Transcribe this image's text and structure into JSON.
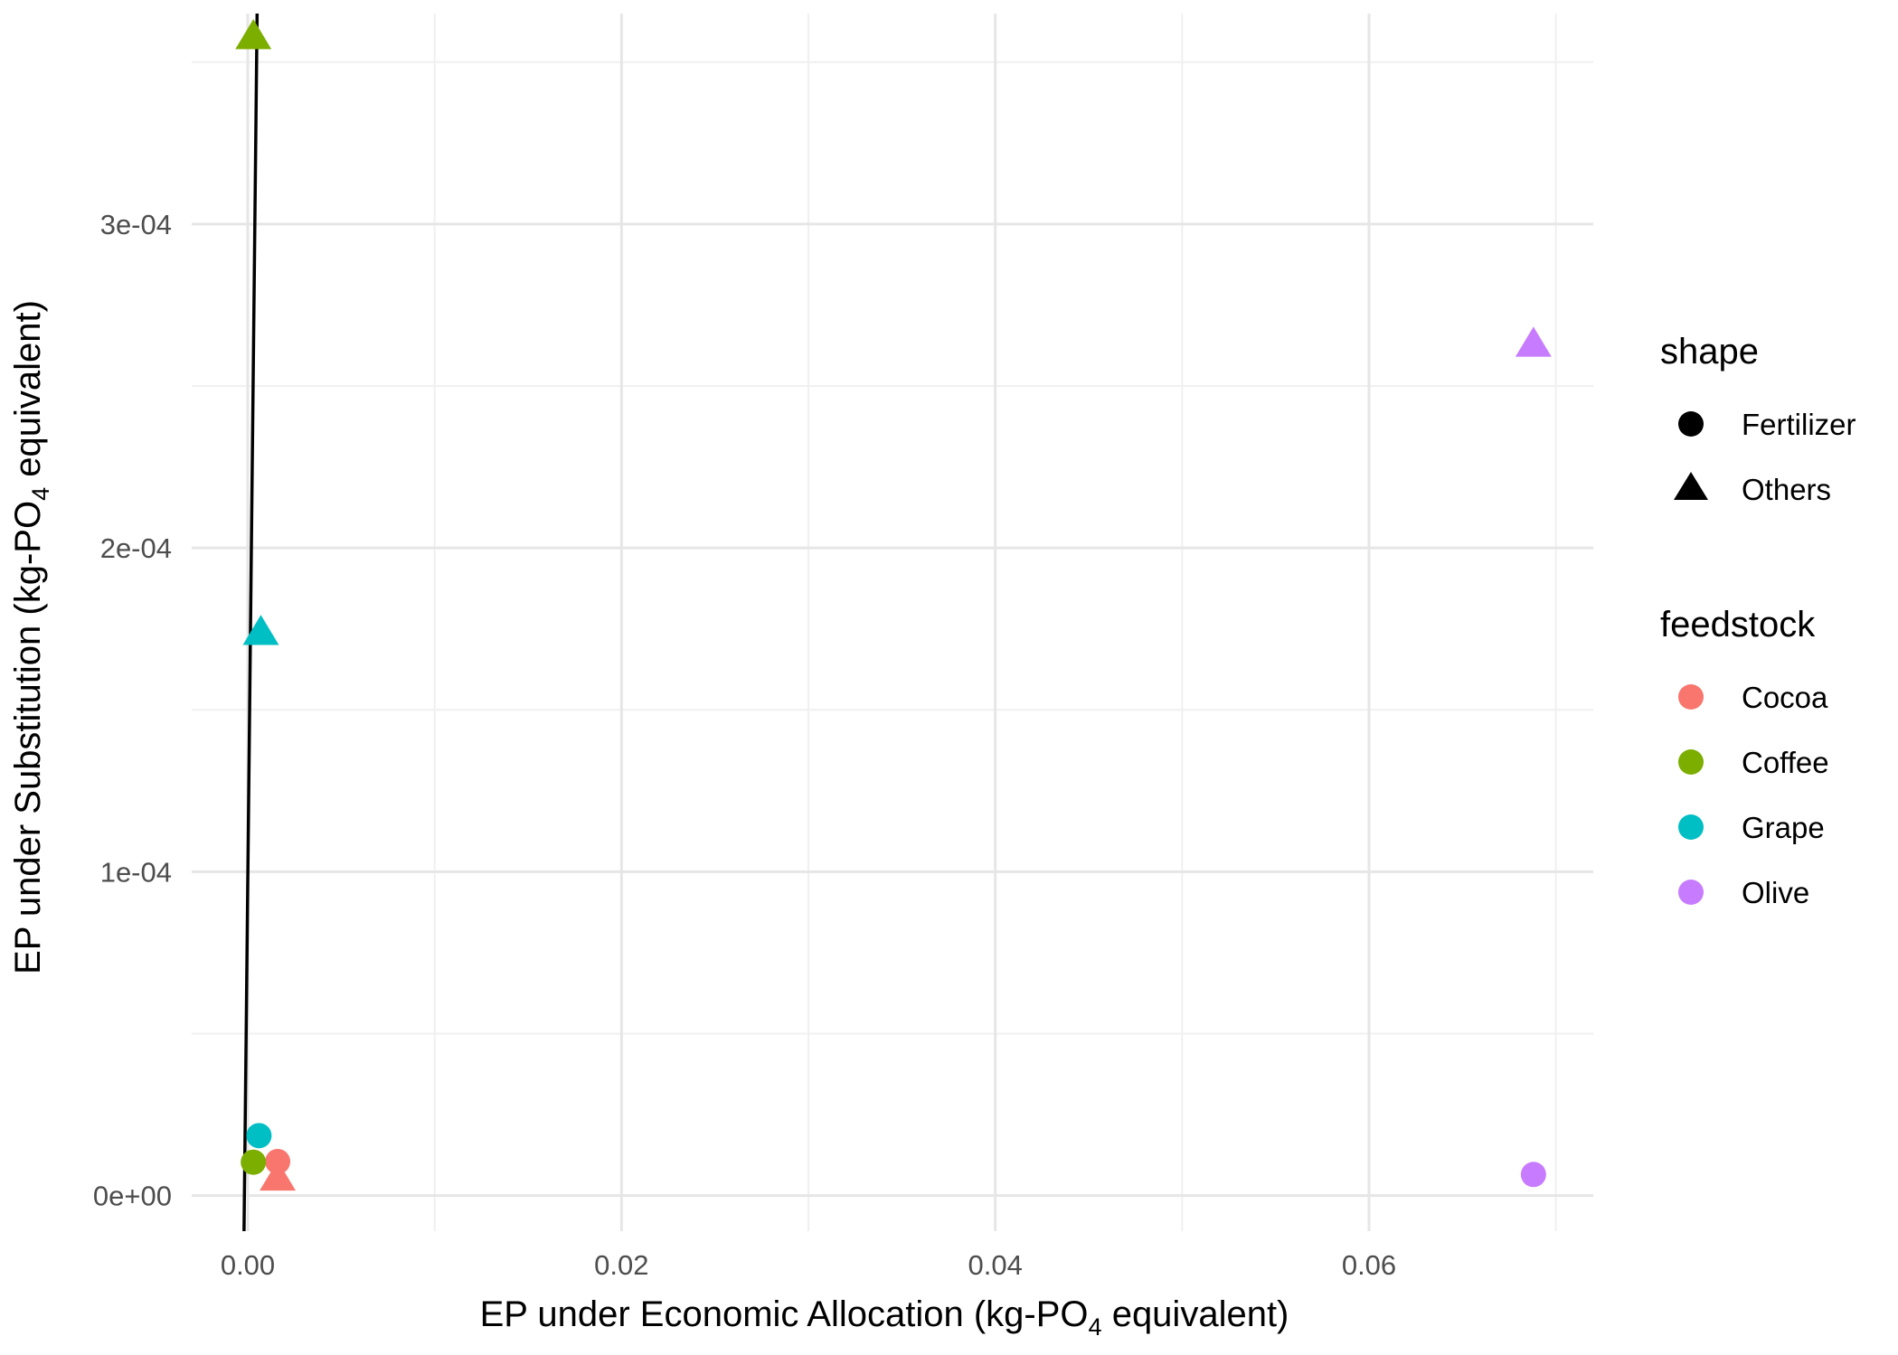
{
  "chart_data": {
    "type": "scatter",
    "xlabel": {
      "prefix": "EP under Economic Allocation (kg-PO",
      "sub": "4",
      "suffix": " equivalent)"
    },
    "ylabel": {
      "prefix": "EP under Substitution (kg-PO",
      "sub": "4",
      "suffix": " equivalent)"
    },
    "xlim": [
      -0.003,
      0.072
    ],
    "ylim": [
      -1.1e-05,
      0.000365
    ],
    "x_ticks": [
      {
        "value": 0.0,
        "label": "0.00"
      },
      {
        "value": 0.02,
        "label": "0.02"
      },
      {
        "value": 0.04,
        "label": "0.04"
      },
      {
        "value": 0.06,
        "label": "0.06"
      }
    ],
    "x_minor": [
      0.01,
      0.03,
      0.05,
      0.07
    ],
    "y_ticks": [
      {
        "value": 0.0,
        "label": "0e+00"
      },
      {
        "value": 0.0001,
        "label": "1e-04"
      },
      {
        "value": 0.0002,
        "label": "2e-04"
      },
      {
        "value": 0.0003,
        "label": "3e-04"
      }
    ],
    "y_minor": [
      5e-05,
      0.00015,
      0.00025,
      0.00035
    ],
    "grid": true,
    "reference_line": {
      "x": [
        -0.0002,
        0.0005
      ],
      "y": [
        -1.1e-05,
        0.000365
      ],
      "color": "#000000"
    },
    "points": [
      {
        "feedstock": "Coffee",
        "shape": "Others",
        "x": 0.0003,
        "y": 0.000358
      },
      {
        "feedstock": "Olive",
        "shape": "Others",
        "x": 0.0688,
        "y": 0.000263
      },
      {
        "feedstock": "Grape",
        "shape": "Others",
        "x": 0.0007,
        "y": 0.000174
      },
      {
        "feedstock": "Grape",
        "shape": "Fertilizer",
        "x": 0.0006,
        "y": 1.85e-05
      },
      {
        "feedstock": "Cocoa",
        "shape": "Fertilizer",
        "x": 0.0016,
        "y": 1.05e-05
      },
      {
        "feedstock": "Coffee",
        "shape": "Fertilizer",
        "x": 0.0003,
        "y": 1.03e-05
      },
      {
        "feedstock": "Cocoa",
        "shape": "Others",
        "x": 0.0016,
        "y": 5.5e-06
      },
      {
        "feedstock": "Olive",
        "shape": "Fertilizer",
        "x": 0.0688,
        "y": 6.5e-06
      }
    ],
    "legend_position": "right",
    "legend": {
      "shape": {
        "title": "shape",
        "items": [
          {
            "label": "Fertilizer",
            "shape": "circle"
          },
          {
            "label": "Others",
            "shape": "triangle"
          }
        ]
      },
      "feedstock": {
        "title": "feedstock",
        "items": [
          {
            "label": "Cocoa",
            "color": "#F8766D"
          },
          {
            "label": "Coffee",
            "color": "#7CAE00"
          },
          {
            "label": "Grape",
            "color": "#00BFC4"
          },
          {
            "label": "Olive",
            "color": "#C77CFF"
          }
        ]
      }
    }
  },
  "colors": {
    "grid_major": "#e6e6e6",
    "grid_minor": "#f0f0f0",
    "tick_text": "#4d4d4d",
    "axis_title": "#000000"
  }
}
